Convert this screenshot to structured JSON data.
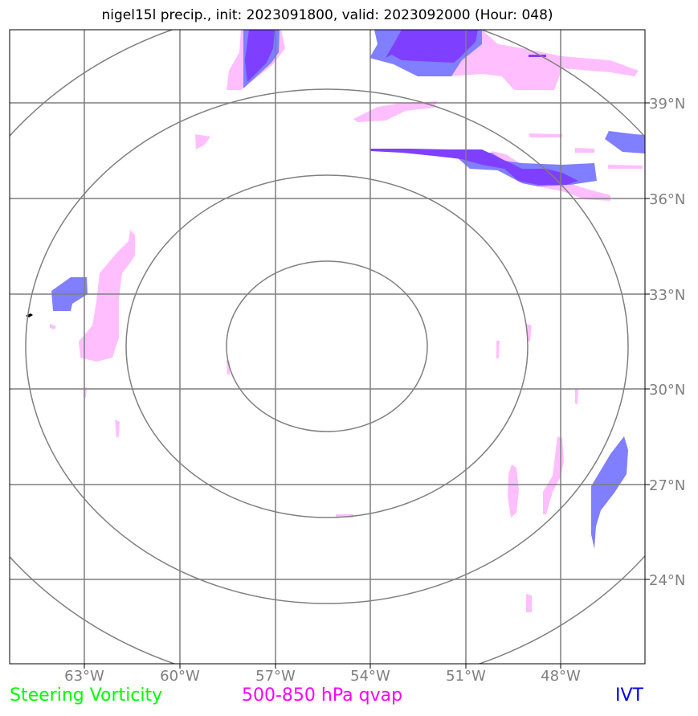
{
  "title": "nigel15l precip., init: 2023091800, valid: 2023092000 (Hour: 048)",
  "lon_ticks": [
    "63°W",
    "60°W",
    "57°W",
    "54°W",
    "51°W",
    "48°W"
  ],
  "lat_ticks": [
    "39°N",
    "36°N",
    "33°N",
    "30°N",
    "27°N",
    "24°N"
  ],
  "legend": {
    "steering_label": "Steering Vorticity",
    "steering_color": "#00ff00",
    "qvap_label": "500-850 hPa qvap",
    "qvap_color": "#ff00ff",
    "ivt_label": "IVT",
    "ivt_color": "#0000ff"
  },
  "fill_colors": {
    "qvap_fill": "#ffbfff",
    "ivt_fill": "#7f7fff",
    "overlap_fill": "#7f3fff"
  },
  "range_rings": 4
}
